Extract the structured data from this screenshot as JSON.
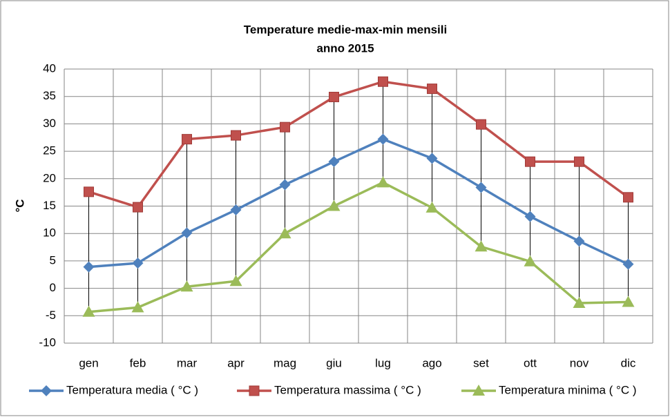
{
  "chart_data": {
    "type": "line",
    "title": "Temperature medie-max-min mensili",
    "subtitle": "anno 2015",
    "y_label": "°C",
    "categories": [
      "gen",
      "feb",
      "mar",
      "apr",
      "mag",
      "giu",
      "lug",
      "ago",
      "set",
      "ott",
      "nov",
      "dic"
    ],
    "series": [
      {
        "name": "Temperatura media ( °C )",
        "color": "#4f81bd",
        "marker": "diamond",
        "values": [
          3.9,
          4.6,
          10.1,
          14.3,
          18.9,
          23.1,
          27.2,
          23.7,
          18.4,
          13.1,
          8.6,
          4.4
        ]
      },
      {
        "name": "Temperatura massima ( °C )",
        "color": "#c0504d",
        "marker": "square",
        "values": [
          17.6,
          14.8,
          27.2,
          27.9,
          29.4,
          34.9,
          37.7,
          36.4,
          29.9,
          23.1,
          23.1,
          16.6
        ]
      },
      {
        "name": "Temperatura minima ( °C )",
        "color": "#9bbb59",
        "marker": "triangle",
        "values": [
          -4.3,
          -3.5,
          0.3,
          1.3,
          10.0,
          15.0,
          19.3,
          14.7,
          7.6,
          4.9,
          -2.7,
          -2.5
        ]
      }
    ],
    "ylim": [
      -10,
      40
    ],
    "yticks": [
      -10,
      -5,
      0,
      5,
      10,
      15,
      20,
      25,
      30,
      35,
      40
    ],
    "grid": true,
    "high_low_lines": true,
    "legend": "bottom"
  }
}
